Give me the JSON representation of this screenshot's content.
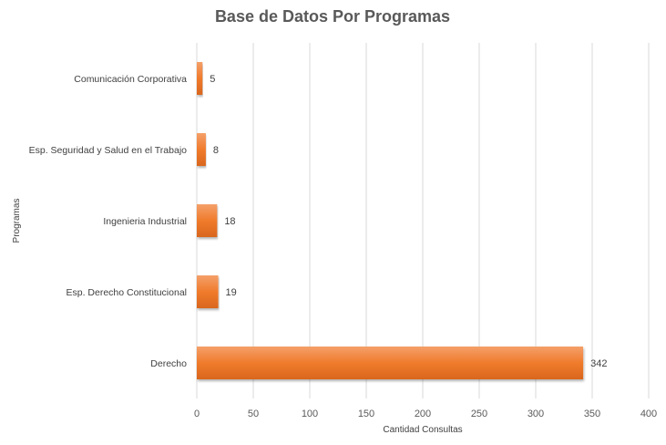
{
  "chart_data": {
    "type": "bar",
    "orientation": "horizontal",
    "title": "Base de Datos Por Programas",
    "xlabel": "Cantidad Consultas",
    "ylabel": "Programas",
    "categories": [
      "Comunicación Corporativa",
      "Esp. Seguridad y Salud en el Trabajo",
      "Ingenieria Industrial",
      "Esp. Derecho Constitucional",
      "Derecho"
    ],
    "values": [
      5,
      8,
      18,
      19,
      342
    ],
    "data_labels": [
      "5",
      "8",
      "18",
      "19",
      "342"
    ],
    "xlim": [
      0,
      400
    ],
    "xticks": [
      0,
      50,
      100,
      150,
      200,
      250,
      300,
      350,
      400
    ],
    "xtick_labels": [
      "0",
      "50",
      "100",
      "150",
      "200",
      "250",
      "300",
      "350",
      "400"
    ],
    "grid": "vertical",
    "legend": "none",
    "bar_color": "#ED7D31"
  }
}
